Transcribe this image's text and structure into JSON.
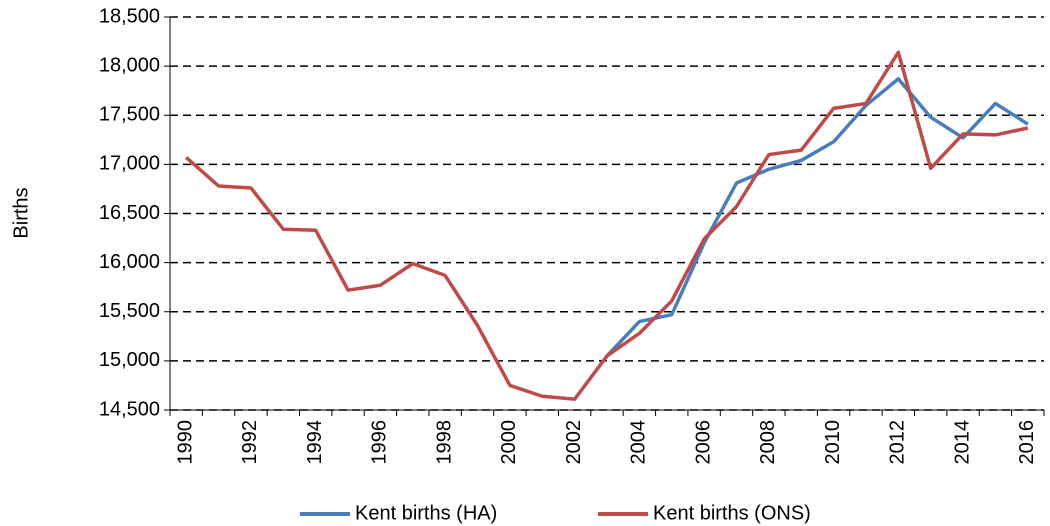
{
  "chart_data": {
    "type": "line",
    "y_label": "Births",
    "categories": [
      "1990",
      null,
      "1992",
      null,
      "1994",
      null,
      "1996",
      null,
      "1998",
      null,
      "2000",
      null,
      "2002",
      null,
      "2004",
      null,
      "2006",
      null,
      "2008",
      null,
      "2010",
      null,
      "2012",
      null,
      "2014",
      null,
      "2016"
    ],
    "series": [
      {
        "name": "Kent births (HA)",
        "color": "#4a7ebb",
        "values": [
          null,
          null,
          null,
          null,
          null,
          null,
          null,
          null,
          null,
          null,
          null,
          null,
          null,
          15050,
          15400,
          15470,
          16200,
          16810,
          16950,
          17040,
          17230,
          17600,
          17870,
          17480,
          17270,
          17620,
          17410
        ]
      },
      {
        "name": "Kent births (ONS)",
        "color": "#be4b48",
        "values": [
          17070,
          16780,
          16760,
          16340,
          16330,
          15720,
          15770,
          15990,
          15870,
          15360,
          14750,
          14640,
          14610,
          15050,
          15280,
          15610,
          16240,
          16570,
          17100,
          17145,
          17570,
          17620,
          18140,
          16960,
          17310,
          17300,
          17370
        ]
      }
    ],
    "ylim": [
      14500,
      18500
    ],
    "yticks": [
      {
        "value": 14500,
        "label": "14,500"
      },
      {
        "value": 15000,
        "label": "15,000"
      },
      {
        "value": 15500,
        "label": "15,500"
      },
      {
        "value": 16000,
        "label": "16,000"
      },
      {
        "value": 16500,
        "label": "16,500"
      },
      {
        "value": 17000,
        "label": "17,000"
      },
      {
        "value": 17500,
        "label": "17,500"
      },
      {
        "value": 18000,
        "label": "18,000"
      },
      {
        "value": 18500,
        "label": "18,500"
      }
    ],
    "grid": true,
    "legend": "bottom"
  }
}
